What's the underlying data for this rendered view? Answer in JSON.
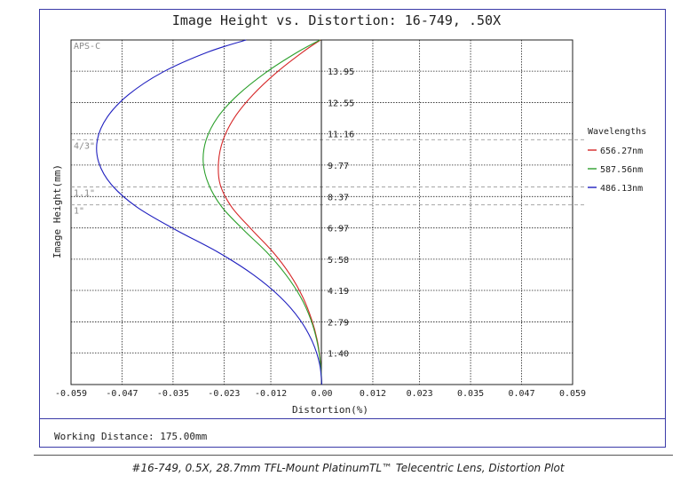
{
  "chart_data": {
    "type": "line",
    "title": "Image Height vs. Distortion: 16-749, .50X",
    "xlabel": "Distortion(%)",
    "ylabel": "Image Height(mm)",
    "xlim": [
      -0.059,
      0.059
    ],
    "ylim": [
      0,
      15.34
    ],
    "x_ticks": [
      "-0.059",
      "-0.047",
      "-0.035",
      "-0.023",
      "-0.012",
      "0.00",
      "0.012",
      "0.023",
      "0.035",
      "0.047",
      "0.059"
    ],
    "x_tick_values": [
      -0.059,
      -0.047,
      -0.035,
      -0.023,
      -0.012,
      0.0,
      0.012,
      0.023,
      0.035,
      0.047,
      0.059
    ],
    "y_ticks": [
      "1.40",
      "2.79",
      "4.19",
      "5.58",
      "6.97",
      "8.37",
      "9.77",
      "11.16",
      "12.55",
      "13.95"
    ],
    "y_tick_values": [
      1.4,
      2.79,
      4.19,
      5.58,
      6.97,
      8.37,
      9.77,
      11.16,
      12.55,
      13.95
    ],
    "grid": true,
    "legend_title": "Wavelengths",
    "legend_position": "right",
    "sensor_markers": [
      {
        "label": "APS-C",
        "y": 15.34
      },
      {
        "label": "4/3\"",
        "y": 10.9
      },
      {
        "label": "1.1\"",
        "y": 8.8
      },
      {
        "label": "1\"",
        "y": 8.0
      }
    ],
    "series": [
      {
        "name": "656.27nm",
        "color": "#d62728",
        "x": [
          0.0,
          -0.0003,
          -0.001,
          -0.0024,
          -0.0045,
          -0.0075,
          -0.0115,
          -0.0165,
          -0.0212,
          -0.0239,
          -0.0243,
          -0.0232,
          -0.0205,
          -0.0162,
          -0.0106,
          -0.0045,
          -0.0003
        ],
        "y": [
          0.0,
          0.9,
          1.9,
          2.9,
          3.9,
          4.9,
          5.9,
          6.9,
          7.9,
          8.9,
          9.9,
          10.9,
          11.9,
          12.9,
          13.9,
          14.8,
          15.34
        ]
      },
      {
        "name": "587.56nm",
        "color": "#2ca02c",
        "x": [
          0.0,
          -0.0003,
          -0.0011,
          -0.0026,
          -0.005,
          -0.0085,
          -0.013,
          -0.0185,
          -0.0235,
          -0.0266,
          -0.0279,
          -0.0272,
          -0.0245,
          -0.0197,
          -0.0131,
          -0.0057,
          -0.0004
        ],
        "y": [
          0.0,
          0.9,
          1.9,
          2.9,
          3.9,
          4.9,
          5.9,
          6.9,
          7.9,
          8.9,
          9.9,
          10.9,
          11.9,
          12.9,
          13.9,
          14.8,
          15.34
        ]
      },
      {
        "name": "486.13nm",
        "color": "#1f1fbf",
        "x": [
          0.0,
          -0.0005,
          -0.0022,
          -0.0052,
          -0.0098,
          -0.0162,
          -0.0245,
          -0.0345,
          -0.0435,
          -0.0495,
          -0.0525,
          -0.0528,
          -0.0505,
          -0.0455,
          -0.0375,
          -0.0268,
          -0.0178
        ],
        "y": [
          0.0,
          0.9,
          1.9,
          2.9,
          3.9,
          4.9,
          5.9,
          6.9,
          7.9,
          8.9,
          9.9,
          10.9,
          11.9,
          12.9,
          13.9,
          14.8,
          15.34
        ]
      }
    ]
  },
  "working_distance": "Working Distance: 175.00mm",
  "caption": "#16-749, 0.5X, 28.7mm TFL-Mount PlatinumTL™ Telecentric Lens, Distortion Plot"
}
